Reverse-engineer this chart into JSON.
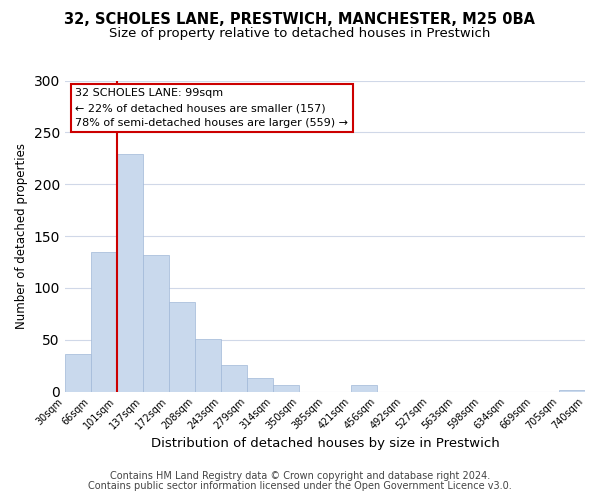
{
  "title_line1": "32, SCHOLES LANE, PRESTWICH, MANCHESTER, M25 0BA",
  "title_line2": "Size of property relative to detached houses in Prestwich",
  "xlabel": "Distribution of detached houses by size in Prestwich",
  "ylabel": "Number of detached properties",
  "bar_edges": [
    30,
    66,
    101,
    137,
    172,
    208,
    243,
    279,
    314,
    350,
    385,
    421,
    456,
    492,
    527,
    563,
    598,
    634,
    669,
    705,
    740
  ],
  "bar_heights": [
    36,
    135,
    229,
    132,
    86,
    51,
    26,
    13,
    6,
    0,
    0,
    6,
    0,
    0,
    0,
    0,
    0,
    0,
    0,
    2
  ],
  "bar_color": "#c9d9ed",
  "bar_edgecolor": "#a0b8d8",
  "bar_linewidth": 0.5,
  "vline_x": 101,
  "vline_color": "#cc0000",
  "vline_linewidth": 1.5,
  "annotation_line1": "32 SCHOLES LANE: 99sqm",
  "annotation_line2": "← 22% of detached houses are smaller (157)",
  "annotation_line3": "78% of semi-detached houses are larger (559) →",
  "annotation_fontsize": 8.0,
  "annotation_box_edgecolor": "#cc0000",
  "annotation_box_facecolor": "#ffffff",
  "ylim": [
    0,
    300
  ],
  "yticks": [
    0,
    50,
    100,
    150,
    200,
    250,
    300
  ],
  "tick_labels": [
    "30sqm",
    "66sqm",
    "101sqm",
    "137sqm",
    "172sqm",
    "208sqm",
    "243sqm",
    "279sqm",
    "314sqm",
    "350sqm",
    "385sqm",
    "421sqm",
    "456sqm",
    "492sqm",
    "527sqm",
    "563sqm",
    "598sqm",
    "634sqm",
    "669sqm",
    "705sqm",
    "740sqm"
  ],
  "footer_line1": "Contains HM Land Registry data © Crown copyright and database right 2024.",
  "footer_line2": "Contains public sector information licensed under the Open Government Licence v3.0.",
  "background_color": "#ffffff",
  "grid_color": "#d0d8e8",
  "title_fontsize": 10.5,
  "subtitle_fontsize": 9.5,
  "xlabel_fontsize": 9.5,
  "ylabel_fontsize": 8.5,
  "footer_fontsize": 7.0,
  "xtick_fontsize": 7.0
}
